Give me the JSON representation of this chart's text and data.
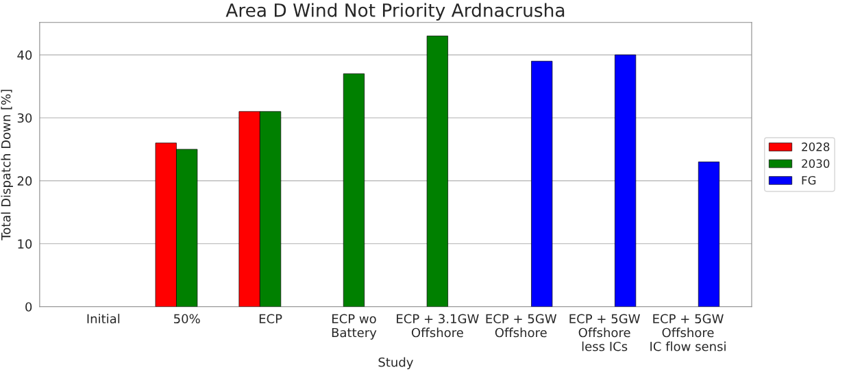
{
  "chart_data": {
    "type": "bar",
    "title": "Area D Wind Not Priority Ardnacrusha",
    "xlabel": "Study",
    "ylabel": "Total Dispatch Down [%]",
    "categories": [
      "Initial",
      "50%",
      "ECP",
      "ECP wo\nBattery",
      "ECP + 3.1GW\nOffshore",
      "ECP + 5GW\nOffshore",
      "ECP + 5GW\nOffshore\nless ICs",
      "ECP + 5GW\nOffshore\nIC flow sensi"
    ],
    "series": [
      {
        "name": "2028",
        "color": "#ff0000",
        "values": [
          null,
          26,
          31,
          null,
          null,
          null,
          null,
          null
        ]
      },
      {
        "name": "2030",
        "color": "#008000",
        "values": [
          null,
          25,
          31,
          37,
          43,
          null,
          null,
          null
        ]
      },
      {
        "name": "FG",
        "color": "#0000ff",
        "values": [
          null,
          null,
          null,
          null,
          null,
          39,
          40,
          23
        ]
      }
    ],
    "ylim": [
      0,
      45.15
    ],
    "yticks": [
      0,
      10,
      20,
      30,
      40
    ],
    "grid": "y",
    "legend": "right"
  }
}
